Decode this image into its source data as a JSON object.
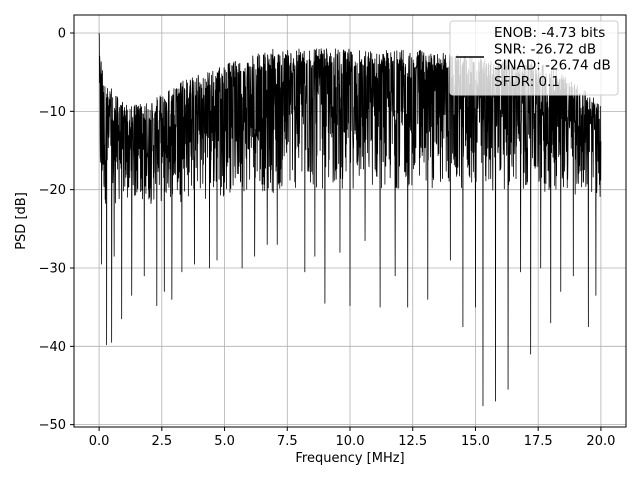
{
  "chart_data": {
    "type": "line",
    "title": "",
    "xlabel": "Frequency [MHz]",
    "ylabel": "PSD [dB]",
    "xlim": [
      -1.0,
      21.0
    ],
    "ylim": [
      -50.3,
      2.3
    ],
    "grid": true,
    "legend_position": "top-right",
    "xticks": [
      0.0,
      2.5,
      5.0,
      7.5,
      10.0,
      12.5,
      15.0,
      17.5,
      20.0
    ],
    "xtick_labels": [
      "0.0",
      "2.5",
      "5.0",
      "7.5",
      "10.0",
      "12.5",
      "15.0",
      "17.5",
      "20.0"
    ],
    "yticks": [
      0,
      -10,
      -20,
      -30,
      -40,
      -50
    ],
    "ytick_labels": [
      "0",
      "−10",
      "−20",
      "−30",
      "−40",
      "−50"
    ],
    "legend": {
      "lines": [
        "ENOB: -4.73 bits",
        "SNR: -26.72 dB",
        "SINAD: -26.74 dB",
        "SFDR: 0.1"
      ]
    },
    "series": [
      {
        "color": "#000000",
        "x_start": 0.0,
        "x_end": 20.0,
        "upper_envelope": [
          [
            0.0,
            0.0
          ],
          [
            0.2,
            -6.0
          ],
          [
            1.0,
            -9.0
          ],
          [
            2.0,
            -9.0
          ],
          [
            3.0,
            -6.5
          ],
          [
            5.0,
            -4.0
          ],
          [
            7.0,
            -2.0
          ],
          [
            10.0,
            -2.0
          ],
          [
            13.0,
            -2.2
          ],
          [
            15.0,
            -3.0
          ],
          [
            18.0,
            -4.0
          ],
          [
            20.0,
            -9.0
          ]
        ],
        "lower_typical": [
          [
            0.0,
            -22.0
          ],
          [
            2.0,
            -22.0
          ],
          [
            5.0,
            -21.0
          ],
          [
            10.0,
            -20.0
          ],
          [
            15.0,
            -20.0
          ],
          [
            20.0,
            -21.0
          ]
        ],
        "dips": [
          [
            0.1,
            -29.5
          ],
          [
            0.3,
            -39.8
          ],
          [
            0.5,
            -39.5
          ],
          [
            0.6,
            -28.5
          ],
          [
            0.9,
            -36.5
          ],
          [
            1.3,
            -33.5
          ],
          [
            1.8,
            -31.0
          ],
          [
            2.3,
            -34.8
          ],
          [
            2.6,
            -33.0
          ],
          [
            2.9,
            -34.0
          ],
          [
            3.3,
            -30.5
          ],
          [
            3.8,
            -29.5
          ],
          [
            4.4,
            -30.0
          ],
          [
            4.7,
            -29.0
          ],
          [
            5.7,
            -30.0
          ],
          [
            6.2,
            -28.5
          ],
          [
            6.7,
            -27.0
          ],
          [
            7.1,
            -27.0
          ],
          [
            8.2,
            -30.5
          ],
          [
            8.6,
            -28.5
          ],
          [
            9.0,
            -34.5
          ],
          [
            9.6,
            -28.0
          ],
          [
            10.0,
            -34.8
          ],
          [
            10.6,
            -26.5
          ],
          [
            11.2,
            -35.0
          ],
          [
            11.8,
            -31.0
          ],
          [
            12.3,
            -35.0
          ],
          [
            13.1,
            -34.0
          ],
          [
            14.0,
            -29.0
          ],
          [
            14.5,
            -37.5
          ],
          [
            15.0,
            -35.0
          ],
          [
            15.3,
            -47.6
          ],
          [
            15.8,
            -47.0
          ],
          [
            16.3,
            -45.5
          ],
          [
            16.8,
            -30.5
          ],
          [
            17.2,
            -41.0
          ],
          [
            17.6,
            -30.0
          ],
          [
            18.0,
            -37.0
          ],
          [
            18.4,
            -33.0
          ],
          [
            18.9,
            -31.0
          ],
          [
            19.5,
            -37.5
          ],
          [
            19.8,
            -33.5
          ]
        ]
      }
    ]
  }
}
